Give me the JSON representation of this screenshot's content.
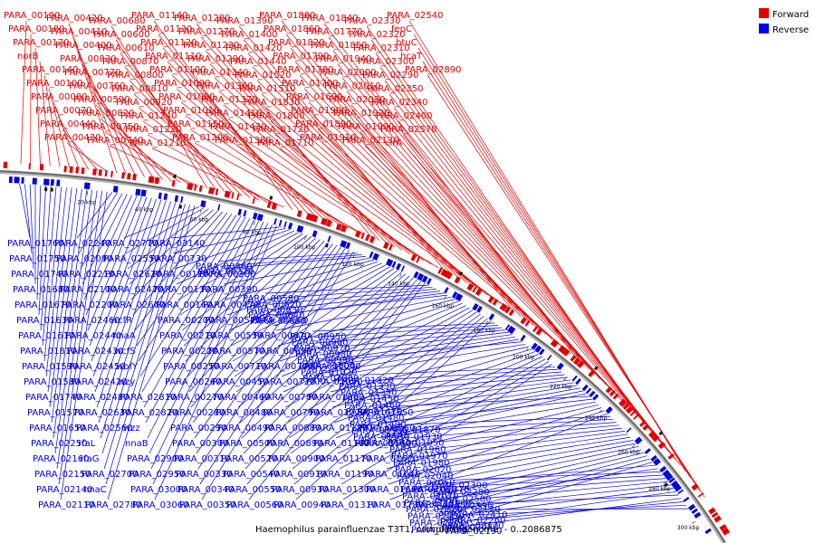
{
  "caption": "Haemophilus parainfluenzae T3T1, complete genome. - 0..2086875",
  "colors": {
    "forward": "#e00000",
    "reverse": "#0000e0",
    "backbone": "#888888"
  },
  "legend": [
    {
      "label": "Forward",
      "color": "#e00000"
    },
    {
      "label": "Reverse",
      "color": "#0000e0"
    }
  ],
  "kbp_ticks": [
    "20 kbp",
    "40 kbp",
    "60 kbp",
    "80 kbp",
    "100 kbp",
    "120 kbp",
    "140 kbp",
    "160 kbp",
    "180 kbp",
    "200 kbp",
    "220 kbp",
    "240 kbp",
    "260 kbp",
    "280 kbp",
    "300 kbp"
  ],
  "forward_labels": [
    "PARA_00190",
    "PARA_00180",
    "PARA_00170",
    "norB",
    "PARA_00140",
    "PARA_00100",
    "PARA_00080",
    "PARA_00070",
    "PARA_00440",
    "PARA_00430",
    "PARA_00420",
    "PARA_00410",
    "PARA_00400",
    "PARA_00830",
    "PARA_00770",
    "PARA_00760",
    "PARA_00590",
    "PARA_00820",
    "PARA_00750",
    "PARA_00740",
    "PARA_00680",
    "PARA_00600",
    "PARA_00610",
    "PARA_00870",
    "PARA_00800",
    "PARA_00810",
    "PARA_00920",
    "PARA_01240",
    "PARA_01220",
    "PARA_01210",
    "PARA_01140",
    "PARA_01130",
    "PARA_01120",
    "PARA_01110",
    "PARA_01100",
    "PARA_01090",
    "PARA_01080",
    "PARA_01010",
    "PARA_01150",
    "PARA_01200",
    "PARA_01280",
    "PARA_01270",
    "PARA_01230",
    "PARA_01290",
    "PARA_01340",
    "PARA_01360",
    "PARA_01370",
    "PARA_01410",
    "PARA_01430",
    "PARA_01380",
    "PARA_01390",
    "PARA_01400",
    "PARA_01420",
    "PARA_01440",
    "PARA_01520",
    "PARA_01510",
    "PARA_01830",
    "PARA_01800",
    "PARA_01720",
    "PARA_01710",
    "PARA_01880",
    "PARA_01860",
    "PARA_01820",
    "PARA_01790",
    "PARA_01780",
    "PARA_01700",
    "PARA_01690",
    "PARA_01900",
    "PARA_01890",
    "PARA_01910",
    "PARA_01840",
    "PARA_01770",
    "PARA_01850",
    "PARA_01940",
    "PARA_02000",
    "PARA_02010",
    "PARA_02030",
    "PARA_01920",
    "PARA_01990",
    "PARA_02130",
    "PARA_02330",
    "PARA_02320",
    "PARA_02310",
    "PARA_02300",
    "PARA_02290",
    "PARA_02350",
    "PARA_02340",
    "PARA_02400",
    "PARA_02570",
    "cirA",
    "PARA_02540",
    "fepC",
    "btuC",
    "hcaT",
    "PARA_02890"
  ],
  "reverse_labels": [
    "PARA_01760",
    "PARA_01750",
    "PARA_01740",
    "PARA_01680",
    "PARA_01670",
    "PARA_01630",
    "PARA_01610",
    "PARA_01810",
    "PARA_01590",
    "PARA_01580",
    "PARA_01740",
    "PARA_01570",
    "PARA_01650",
    "PARA_02250",
    "PARA_02160",
    "PARA_02150",
    "PARA_02140",
    "PARA_02110",
    "PARA_02240",
    "PARA_02090",
    "PARA_02210",
    "PARA_02100",
    "PARA_02200",
    "PARA_02460",
    "PARA_02440",
    "PARA_02430",
    "PARA_02450",
    "PARA_02420",
    "PARA_02480",
    "PARA_02630",
    "PARA_02560",
    "rfaL",
    "rfaG",
    "PARA_02700",
    "nnaC",
    "PARA_02780",
    "PARA_02770",
    "PARA_02550",
    "PARA_02620",
    "PARA_02470",
    "PARA_02600",
    "wcfR",
    "nnaA",
    "wcfS",
    "wbfY",
    "wzy",
    "PARA_02810",
    "PARA_02820",
    "wzz",
    "nnaB",
    "PARA_02900",
    "PARA_02950",
    "PARA_03000",
    "PARA_03060",
    "PARA_03140",
    "PARA_00730",
    "PARA_00120",
    "PARA_00130",
    "PARA_00160",
    "PARA_00200",
    "PARA_00210",
    "PARA_00220",
    "PARA_00250",
    "PARA_00260",
    "PARA_00270",
    "PARA_00280",
    "PARA_00290",
    "PARA_00300",
    "PARA_00310",
    "PARA_00330",
    "PARA_00340",
    "PARA_00350",
    "PARA_00360",
    "PARA_00370",
    "PARA_00380",
    "PARA_00390",
    "PARA_00470",
    "PARA_00510",
    "PARA_00530",
    "PARA_00570",
    "PARA_00710",
    "PARA_00450",
    "PARA_00460",
    "PARA_00480",
    "PARA_00490",
    "PARA_00500",
    "PARA_00520",
    "PARA_00540",
    "PARA_00550",
    "PARA_00560",
    "PARA_00580",
    "PARA_00620",
    "PARA_00630",
    "PARA_00640",
    "PARA_00650",
    "PARA_00660",
    "PARA_00670",
    "PARA_00690",
    "PARA_00700",
    "PARA_00720",
    "PARA_00780",
    "PARA_00790",
    "PARA_00880",
    "PARA_00890",
    "PARA_00900",
    "PARA_00910",
    "PARA_00930",
    "PARA_00940",
    "PARA_00950",
    "PARA_00960",
    "PARA_00970",
    "PARA_00980",
    "PARA_00990",
    "PARA_01000",
    "PARA_01020",
    "PARA_01030",
    "PARA_01040",
    "PARA_01050",
    "PARA_01060",
    "PARA_01070",
    "PARA_01180",
    "PARA_01160",
    "PARA_01170",
    "PARA_01190",
    "PARA_01300",
    "PARA_01310",
    "PARA_01320",
    "PARA_01330",
    "PARA_01350",
    "PARA_01450",
    "PARA_01460",
    "PARA_01470",
    "PARA_01480",
    "PARA_01490",
    "PARA_01500",
    "PARA_01530",
    "PARA_01540",
    "PARA_01550",
    "PARA_01560",
    "PARA_01600",
    "PARA_01620",
    "PARA_01640",
    "PARA_01660",
    "PARA_01730",
    "PARA_01870",
    "PARA_01930",
    "PARA_01950",
    "PARA_01960",
    "PARA_01970",
    "PARA_01980",
    "PARA_02020",
    "PARA_02040",
    "PARA_02050",
    "PARA_02060",
    "PARA_02070",
    "PARA_02180",
    "PARA_02220",
    "PARA_02230",
    "PARA_02270",
    "PARA_02360",
    "PARA_02370",
    "PARA_02380",
    "PARA_02390",
    "PARA_02280",
    "PARA_02580",
    "PARA_02590",
    "agp",
    "pepB",
    "PARA_02080",
    "PARA_02120",
    "PARA_02190",
    "PARA_02170",
    "PARA_02260",
    "PARA_02410"
  ]
}
